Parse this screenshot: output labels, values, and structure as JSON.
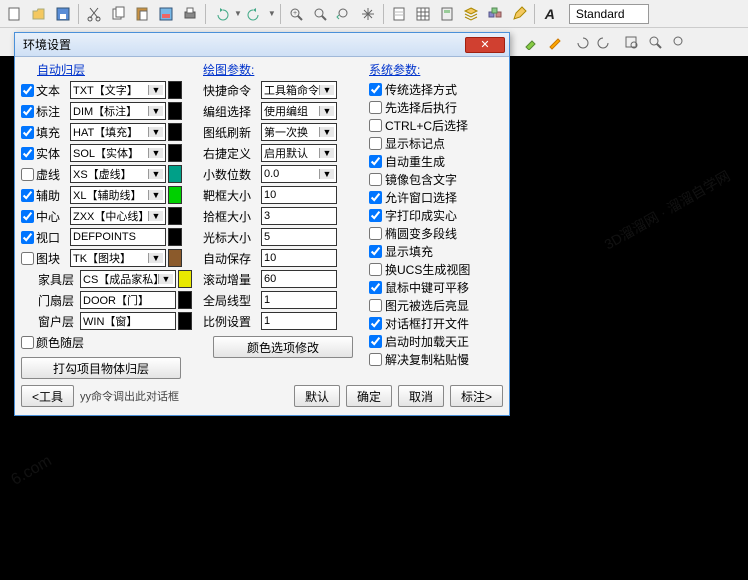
{
  "toolbar": {
    "style_label": "Standard"
  },
  "dialog": {
    "title": "环境设置",
    "headers": {
      "auto_layer": "自动归层",
      "draw_param": "绘图参数:",
      "sys_param": "系统参数:"
    },
    "layers": [
      {
        "checked": true,
        "name": "文本",
        "combo": "TXT【文字】",
        "color": "#000000"
      },
      {
        "checked": true,
        "name": "标注",
        "combo": "DIM【标注】",
        "color": "#000000"
      },
      {
        "checked": true,
        "name": "填充",
        "combo": "HAT【填充】",
        "color": "#000000"
      },
      {
        "checked": true,
        "name": "实体",
        "combo": "SOL【实体】",
        "color": "#000000"
      },
      {
        "checked": false,
        "name": "虚线",
        "combo": "XS【虚线】",
        "color": "#00a088"
      },
      {
        "checked": true,
        "name": "辅助",
        "combo": "XL【辅助线】",
        "color": "#00d000"
      },
      {
        "checked": true,
        "name": "中心",
        "combo": "ZXX【中心线】",
        "color": "#000000"
      },
      {
        "checked": true,
        "name": "视口",
        "combo": "DEFPOINTS",
        "color": "#000000",
        "no_arrow": true
      },
      {
        "checked": false,
        "name": "图块",
        "combo": "TK【图块】",
        "color": "#8b5a2b"
      },
      {
        "checked": false,
        "name": "家具层",
        "combo": "CS【成品家私】",
        "color": "#e8e800",
        "no_cb": true
      },
      {
        "checked": false,
        "name": "门扇层",
        "combo": "DOOR【门】",
        "color": "#000000",
        "no_cb": true,
        "no_arrow": true
      },
      {
        "checked": false,
        "name": "窗户层",
        "combo": "WIN【窗】",
        "color": "#000000",
        "no_cb": true,
        "no_arrow": true
      }
    ],
    "color_follow": "颜色随层",
    "group_button": "打勾项目物体归层",
    "draw_params": [
      {
        "label": "快捷命令",
        "type": "combo",
        "value": "工具箱命令"
      },
      {
        "label": "编组选择",
        "type": "combo",
        "value": "使用编组"
      },
      {
        "label": "图纸刷新",
        "type": "combo",
        "value": "第一次换"
      },
      {
        "label": "右捷定义",
        "type": "combo",
        "value": "启用默认"
      },
      {
        "label": "小数位数",
        "type": "combo",
        "value": "0.0"
      },
      {
        "label": "靶框大小",
        "type": "input",
        "value": "10"
      },
      {
        "label": "拾框大小",
        "type": "input",
        "value": "3"
      },
      {
        "label": "光标大小",
        "type": "input",
        "value": "5"
      },
      {
        "label": "自动保存",
        "type": "input",
        "value": "10"
      },
      {
        "label": "滚动增量",
        "type": "input",
        "value": "60"
      },
      {
        "label": "全局线型",
        "type": "input",
        "value": "1"
      },
      {
        "label": "比例设置",
        "type": "input",
        "value": "1"
      }
    ],
    "color_opt_btn": "颜色选项修改",
    "sys_params": [
      {
        "checked": true,
        "label": "传统选择方式"
      },
      {
        "checked": false,
        "label": "先选择后执行"
      },
      {
        "checked": false,
        "label": "CTRL+C后选择"
      },
      {
        "checked": false,
        "label": "显示标记点"
      },
      {
        "checked": true,
        "label": "自动重生成"
      },
      {
        "checked": false,
        "label": "镜像包含文字"
      },
      {
        "checked": true,
        "label": "允许窗口选择"
      },
      {
        "checked": true,
        "label": "字打印成实心"
      },
      {
        "checked": false,
        "label": "椭圆变多段线"
      },
      {
        "checked": true,
        "label": "显示填充"
      },
      {
        "checked": false,
        "label": "换UCS生成视图"
      },
      {
        "checked": true,
        "label": "鼠标中键可平移"
      },
      {
        "checked": false,
        "label": "图元被选后亮显"
      },
      {
        "checked": true,
        "label": "对话框打开文件"
      },
      {
        "checked": true,
        "label": "启动时加载天正"
      },
      {
        "checked": false,
        "label": "解决复制粘贴慢"
      }
    ],
    "bottom": {
      "tool": "<工具",
      "hint": "yy命令调出此对话框",
      "default": "默认",
      "ok": "确定",
      "cancel": "取消",
      "annotate": "标注>"
    }
  }
}
